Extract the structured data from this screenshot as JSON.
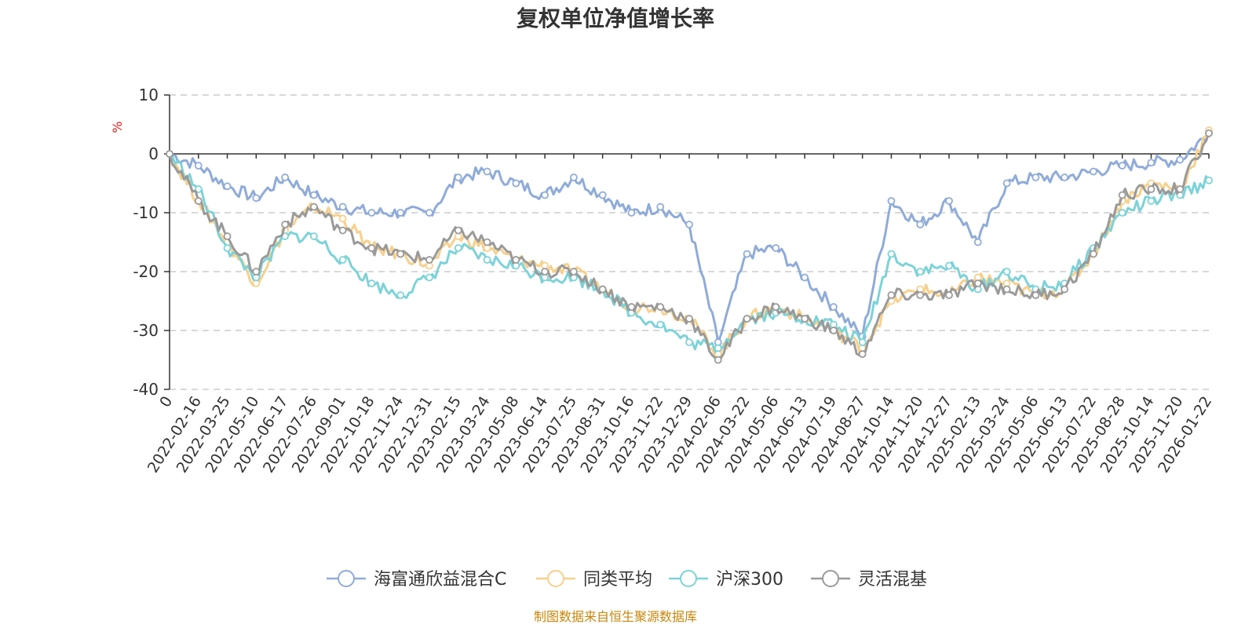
{
  "chart_data": {
    "type": "line",
    "title": "复权单位净值增长率",
    "ylabel": "%",
    "ylim": [
      -40,
      10
    ],
    "yticks": [
      10,
      0,
      -10,
      -20,
      -30,
      -40
    ],
    "x_ticks": [
      "0",
      "2022-02-16",
      "2022-03-25",
      "2022-05-10",
      "2022-06-17",
      "2022-07-26",
      "2022-09-01",
      "2022-10-18",
      "2022-11-24",
      "2022-12-31",
      "2023-02-15",
      "2023-03-24",
      "2023-05-08",
      "2023-06-14",
      "2023-07-25",
      "2023-08-31",
      "2023-10-16",
      "2023-11-22",
      "2023-12-29",
      "2024-02-06",
      "2024-03-22",
      "2024-05-06",
      "2024-06-13",
      "2024-07-19",
      "2024-08-27",
      "2024-10-14",
      "2024-11-20",
      "2024-12-27",
      "2025-02-13",
      "2025-03-24",
      "2025-05-06",
      "2025-06-13",
      "2025-07-22",
      "2025-08-28",
      "2025-10-14",
      "2025-11-20",
      "2026-01-22"
    ],
    "grid": "dashed horizontal",
    "legend_position": "bottom-center",
    "series": [
      {
        "name": "海富通欣益混合C",
        "color": "#8fabd8",
        "values": [
          0,
          -2,
          -5.5,
          -7.5,
          -4,
          -7,
          -9,
          -10,
          -10,
          -10,
          -4,
          -3,
          -5,
          -7,
          -4,
          -7,
          -10,
          -9,
          -12,
          -32,
          -17,
          -16,
          -21,
          -26,
          -31,
          -8,
          -12,
          -8,
          -15,
          -5,
          -4,
          -4,
          -3,
          -2,
          -1.5,
          -1,
          3.5
        ]
      },
      {
        "name": "同类平均",
        "color": "#f7d08c",
        "values": [
          0,
          -8,
          -15,
          -22,
          -13,
          -9,
          -11,
          -16,
          -17,
          -19,
          -14,
          -16,
          -18,
          -19,
          -20,
          -23,
          -26,
          -26,
          -28,
          -34,
          -28,
          -26,
          -28,
          -30,
          -33,
          -25,
          -23,
          -24,
          -21,
          -22,
          -24,
          -23,
          -17,
          -8,
          -5,
          -6,
          4
        ]
      },
      {
        "name": "沪深300",
        "color": "#7cd3d8",
        "values": [
          0,
          -6,
          -16,
          -21,
          -14,
          -14,
          -18,
          -22,
          -24,
          -21,
          -16,
          -18,
          -19,
          -21,
          -21,
          -23,
          -27,
          -29,
          -32,
          -33,
          -28,
          -27,
          -28,
          -29,
          -32,
          -17,
          -20,
          -19,
          -23,
          -20,
          -23,
          -22,
          -16,
          -10,
          -8,
          -7,
          -4.5
        ]
      },
      {
        "name": "灵活混基",
        "color": "#9a9a9a",
        "values": [
          0,
          -8,
          -14,
          -20,
          -12,
          -9,
          -13,
          -16,
          -17,
          -18,
          -13,
          -15,
          -18,
          -20,
          -20,
          -23,
          -26,
          -26,
          -28,
          -35,
          -28,
          -26,
          -28,
          -30,
          -34,
          -24,
          -24,
          -24,
          -22,
          -23,
          -24,
          -23,
          -17,
          -7,
          -6,
          -6,
          3.5
        ]
      }
    ]
  },
  "footer": {
    "source": "制图数据来自恒生聚源数据库"
  }
}
